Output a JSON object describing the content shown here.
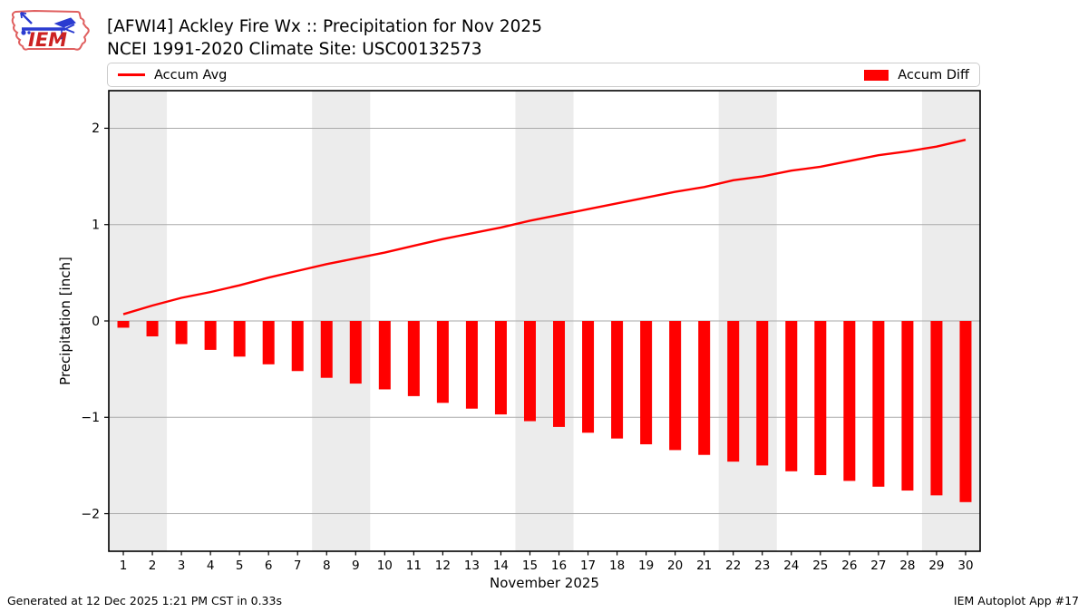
{
  "header": {
    "title": "[AFWI4] Ackley Fire Wx :: Precipitation for Nov 2025",
    "subtitle": "NCEI 1991-2020 Climate Site: USC00132573",
    "logo_text": "IEM"
  },
  "legend": {
    "items": [
      {
        "label": "Accum Avg",
        "type": "line",
        "color": "#ff0000"
      },
      {
        "label": "Accum Diff",
        "type": "bar",
        "color": "#ff0000"
      }
    ]
  },
  "chart_data": {
    "type": "bar",
    "title": "[AFWI4] Ackley Fire Wx :: Precipitation for Nov 2025",
    "subtitle": "NCEI 1991-2020 Climate Site: USC00132573",
    "categories": [
      1,
      2,
      3,
      4,
      5,
      6,
      7,
      8,
      9,
      10,
      11,
      12,
      13,
      14,
      15,
      16,
      17,
      18,
      19,
      20,
      21,
      22,
      23,
      24,
      25,
      26,
      27,
      28,
      29,
      30
    ],
    "series": [
      {
        "name": "Accum Avg",
        "type": "line",
        "color": "#ff0000",
        "values": [
          0.07,
          0.16,
          0.24,
          0.3,
          0.37,
          0.45,
          0.52,
          0.59,
          0.65,
          0.71,
          0.78,
          0.85,
          0.91,
          0.97,
          1.04,
          1.1,
          1.16,
          1.22,
          1.28,
          1.34,
          1.39,
          1.46,
          1.5,
          1.56,
          1.6,
          1.66,
          1.72,
          1.76,
          1.81,
          1.88
        ]
      },
      {
        "name": "Accum Diff",
        "type": "bar",
        "color": "#ff0000",
        "values": [
          -0.07,
          -0.16,
          -0.24,
          -0.3,
          -0.37,
          -0.45,
          -0.52,
          -0.59,
          -0.65,
          -0.71,
          -0.78,
          -0.85,
          -0.91,
          -0.97,
          -1.04,
          -1.1,
          -1.16,
          -1.22,
          -1.28,
          -1.34,
          -1.39,
          -1.46,
          -1.5,
          -1.56,
          -1.6,
          -1.66,
          -1.72,
          -1.76,
          -1.81,
          -1.88
        ]
      }
    ],
    "xlabel": "November 2025",
    "ylabel": "Precipitation [inch]",
    "xlim": [
      0.5,
      30.5
    ],
    "ylim": [
      -2.39,
      2.39
    ],
    "yticks": [
      {
        "value": 2,
        "label": "2"
      },
      {
        "value": 1,
        "label": "1"
      },
      {
        "value": 0,
        "label": "0"
      },
      {
        "value": -1,
        "label": "−1"
      },
      {
        "value": -2,
        "label": "−2"
      }
    ],
    "grid": true,
    "legend_position": "top",
    "weekend_bands": [
      [
        0.5,
        2.5
      ],
      [
        7.5,
        9.5
      ],
      [
        14.5,
        16.5
      ],
      [
        21.5,
        23.5
      ],
      [
        28.5,
        30.5
      ]
    ],
    "band_color": "#ececec",
    "grid_color": "#aaaaaa"
  },
  "footer": {
    "left": "Generated at 12 Dec 2025 1:21 PM CST in 0.33s",
    "right": "IEM Autoplot App #17"
  }
}
